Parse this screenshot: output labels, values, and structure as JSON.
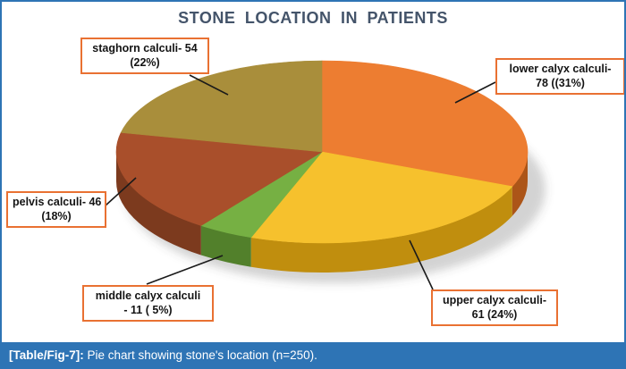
{
  "title": "STONE LOCATION IN PATIENTS",
  "caption": {
    "prefix": "[Table/Fig-7]:",
    "text": " Pie chart showing stone's location (n=250)."
  },
  "theme": {
    "frame_color": "#2E74B5",
    "caption_bg": "#2E74B5",
    "caption_text_color": "#FFFFFF",
    "title_color": "#44546A",
    "callout_border_color": "#E97132"
  },
  "chart_data": {
    "type": "pie",
    "title": "STONE LOCATION IN PATIENTS",
    "total": 250,
    "effect": "3d",
    "start_angle_deg": -90,
    "direction": "clockwise",
    "legend": "none",
    "slices": [
      {
        "key": "lower-calyx",
        "label": "lower calyx calculi",
        "value": 78,
        "percent": 31,
        "color": "#ED7D31",
        "side_color": "#AC5518",
        "callout": [
          "lower calyx calculi-",
          "78 ((31%)"
        ]
      },
      {
        "key": "upper-calyx",
        "label": "upper calyx calculi",
        "value": 61,
        "percent": 24,
        "color": "#F6C12D",
        "side_color": "#C08E0E",
        "callout": [
          "upper calyx calculi-",
          "61 (24%)"
        ]
      },
      {
        "key": "middle-calyx",
        "label": "middle calyx calculi",
        "value": 11,
        "percent": 5,
        "color": "#76B043",
        "side_color": "#52802B",
        "callout": [
          "middle calyx calculi",
          "- 11 ( 5%)"
        ]
      },
      {
        "key": "pelvis",
        "label": "pelvis calculi",
        "value": 46,
        "percent": 18,
        "color": "#A94F2B",
        "side_color": "#7C3A1E",
        "callout": [
          "pelvis calculi- 46",
          "(18%)"
        ]
      },
      {
        "key": "staghorn",
        "label": "staghorn calculi",
        "value": 54,
        "percent": 22,
        "color": "#A98E3B",
        "side_color": "#7E6A28",
        "callout": [
          "staghorn calculi- 54",
          "(22%)"
        ]
      }
    ]
  }
}
